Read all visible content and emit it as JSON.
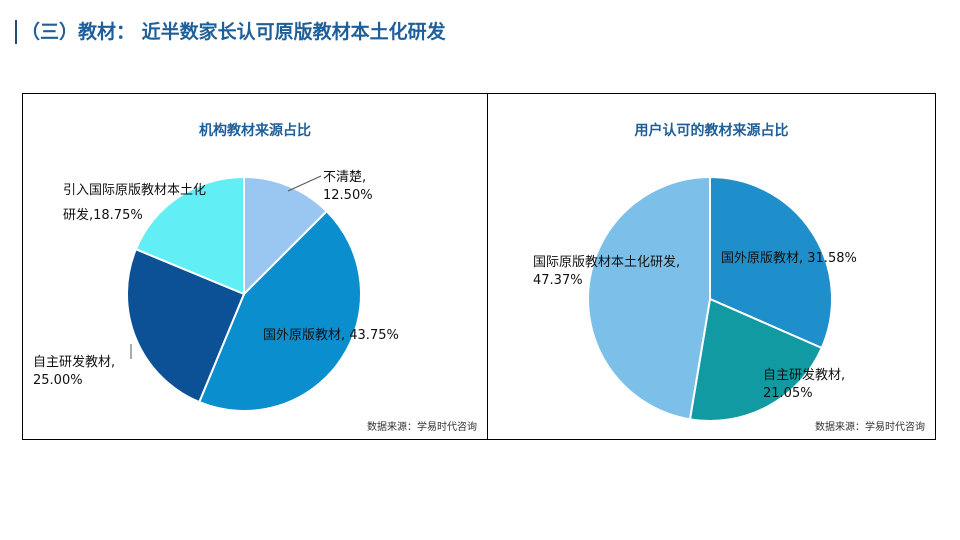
{
  "header": {
    "title": "（三）教材：  近半数家长认可原版教材本土化研发"
  },
  "chart_data": [
    {
      "type": "pie",
      "title": "机构教材来源占比",
      "source": "数据来源：学易时代咨询",
      "slices": [
        {
          "name": "不清楚",
          "value": 12.5,
          "label": "12.50%",
          "color": "#99c7f2"
        },
        {
          "name": "国外原版教材",
          "value": 43.75,
          "label": "43.75%",
          "color": "#0a8ecd"
        },
        {
          "name": "自主研发教材",
          "value": 25.0,
          "label": "25.00%",
          "color": "#0c5195"
        },
        {
          "name": "引入国际原版教材本土化研发",
          "value": 18.75,
          "label": "18.75%",
          "color": "#62eef5"
        }
      ]
    },
    {
      "type": "pie",
      "title": "用户认可的教材来源占比",
      "source": "数据来源：学易时代咨询",
      "slices": [
        {
          "name": "国外原版教材",
          "value": 31.58,
          "label": "31.58%",
          "color": "#1f8fcb"
        },
        {
          "name": "自主研发教材",
          "value": 21.05,
          "label": "21.05%",
          "color": "#119aa1"
        },
        {
          "name": "国际原版教材本土化研发",
          "value": 47.37,
          "label": "47.37%",
          "color": "#7cc0ea"
        }
      ]
    }
  ]
}
